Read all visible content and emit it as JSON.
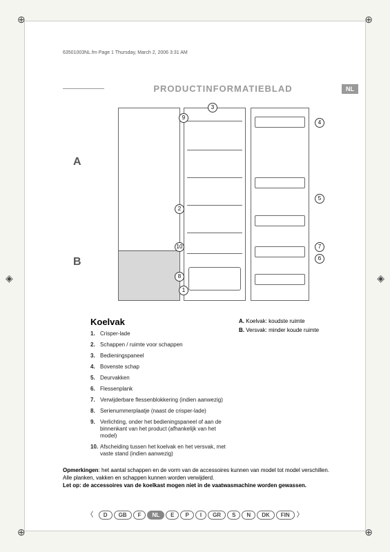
{
  "header": {
    "file_stamp": "63501003NL.fm  Page 1  Thursday, March 2, 2006  3:31 AM",
    "title": "PRODUCTINFORMATIEBLAD",
    "lang_badge": "NL"
  },
  "diagram": {
    "labelA": "A",
    "labelB": "B",
    "callouts": {
      "c1": "1",
      "c2": "2",
      "c3": "3",
      "c4": "4",
      "c5": "5",
      "c6": "6",
      "c7": "7",
      "c8": "8",
      "c9": "9",
      "c10": "10"
    }
  },
  "section": {
    "heading": "Koelvak",
    "items": [
      {
        "num": "1.",
        "text": "Crisper-lade"
      },
      {
        "num": "2.",
        "text": "Schappen / ruimte voor schappen"
      },
      {
        "num": "3.",
        "text": "Bedieningspaneel"
      },
      {
        "num": "4.",
        "text": "Bovenste schap"
      },
      {
        "num": "5.",
        "text": "Deurvakken"
      },
      {
        "num": "6.",
        "text": "Flessenplank"
      },
      {
        "num": "7.",
        "text": "Verwijderbare flessenblokkering (indien aanwezig)"
      },
      {
        "num": "8.",
        "text": "Serienummerplaatje (naast de crisper-lade)"
      },
      {
        "num": "9.",
        "text": "Verlichting, onder het bedieningspaneel of aan de binnenkant van het product (afhankelijk van het model)"
      },
      {
        "num": "10.",
        "text": "Afscheiding tussen het koelvak en het versvak, met vaste stand (indien aanwezig)"
      }
    ],
    "rightA": {
      "label": "A.",
      "text": "Koelvak: koudste ruimte"
    },
    "rightB": {
      "label": "B.",
      "text": "Versvak: minder koude ruimte"
    }
  },
  "notes": {
    "lead": "Opmerkingen",
    "line1": ": het aantal schappen en de vorm van de accessoires kunnen van model tot model verschillen.",
    "line2": "Alle planken, vakken en schappen kunnen worden verwijderd.",
    "bold": "Let op: de accessoires van de koelkast mogen niet in de vaatwasmachine worden gewassen."
  },
  "languages": [
    "D",
    "GB",
    "F",
    "NL",
    "E",
    "P",
    "I",
    "GR",
    "S",
    "N",
    "DK",
    "FIN"
  ],
  "active_lang": "NL"
}
